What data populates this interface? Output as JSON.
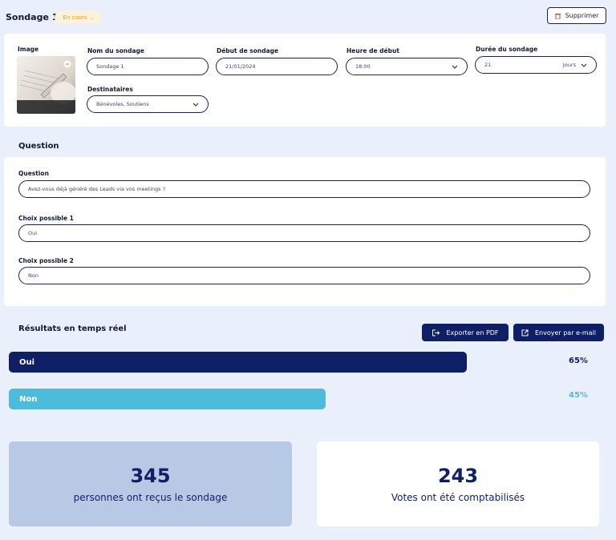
{
  "header": {
    "title": "Sondage 1",
    "status": "En cours",
    "delete_label": "Supprimer"
  },
  "survey": {
    "image_label": "Image",
    "name_label": "Nom du sondage",
    "name_value": "Sondage 1",
    "start_label": "Début de sondage",
    "start_value": "21/01/2024",
    "time_label": "Heure de début",
    "time_value": "18:00",
    "duration_label": "Durée du sondage",
    "duration_value": "21",
    "duration_unit": "Jours",
    "recipients_label": "Destinataires",
    "recipients_value": "Bénévoles, Soutiens"
  },
  "question": {
    "section_title": "Question",
    "question_label": "Question",
    "question_value": "Avez-vous déjà généré des Leads via vos meetings ?",
    "choice1_label": "Choix possible 1",
    "choice1_value": "Oui",
    "choice2_label": "Choix possible 2",
    "choice2_value": "Non"
  },
  "results": {
    "section_title": "Résultats en temps réel",
    "export_pdf": "Exporter en PDF",
    "send_email": "Envoyer par e-mail",
    "items": [
      {
        "label": "Oui",
        "percent": 65,
        "percent_label": "65%",
        "color": "#0f1f66",
        "text_color": "#0f1f66"
      },
      {
        "label": "Non",
        "percent": 45,
        "percent_label": "45%",
        "color": "#4dbcdc",
        "text_color": "#4dbcdc"
      }
    ]
  },
  "stats": {
    "received_count": "345",
    "received_caption": "personnes ont reçus le sondage",
    "votes_count": "243",
    "votes_caption": "Votes ont été comptabilisés"
  },
  "colors": {
    "accent": "#0f1f66",
    "secondary": "#4dbcdc",
    "status_bg": "#fdf1d8",
    "status_text": "#e0a11a",
    "stat_left_bg": "#b8c9e5"
  },
  "icons": [
    "trash-icon",
    "chevron-down-icon",
    "export-icon",
    "external-link-icon"
  ]
}
